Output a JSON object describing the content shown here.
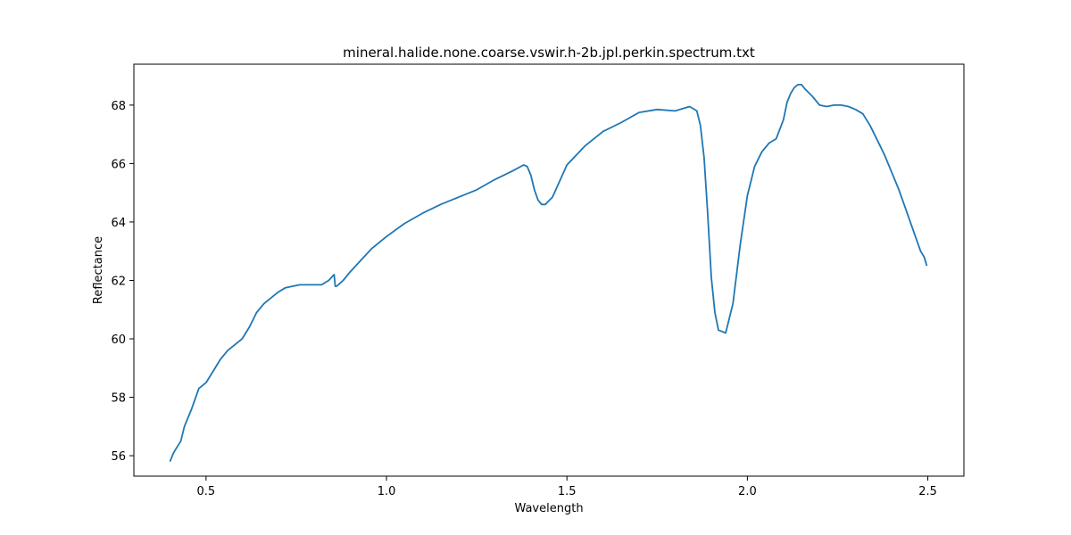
{
  "chart_data": {
    "type": "line",
    "title": "mineral.halide.none.coarse.vswir.h-2b.jpl.perkin.spectrum.txt",
    "xlabel": "Wavelength",
    "ylabel": "Reflectance",
    "xlim": [
      0.3,
      2.6
    ],
    "ylim": [
      55.3,
      69.4
    ],
    "xticks": [
      0.5,
      1.0,
      1.5,
      2.0,
      2.5
    ],
    "xtick_labels": [
      "0.5",
      "1.0",
      "1.5",
      "2.0",
      "2.5"
    ],
    "yticks": [
      56,
      58,
      60,
      62,
      64,
      66,
      68
    ],
    "ytick_labels": [
      "56",
      "58",
      "60",
      "62",
      "64",
      "66",
      "68"
    ],
    "grid": false,
    "line_color": "#1f77b4",
    "series": [
      {
        "x": [
          0.4,
          0.41,
          0.42,
          0.43,
          0.44,
          0.46,
          0.48,
          0.5,
          0.52,
          0.54,
          0.56,
          0.58,
          0.6,
          0.62,
          0.64,
          0.66,
          0.68,
          0.7,
          0.72,
          0.74,
          0.76,
          0.78,
          0.8,
          0.82,
          0.84,
          0.855,
          0.858,
          0.862,
          0.88,
          0.9,
          0.93,
          0.96,
          1.0,
          1.05,
          1.1,
          1.15,
          1.2,
          1.25,
          1.3,
          1.35,
          1.38,
          1.39,
          1.4,
          1.41,
          1.42,
          1.43,
          1.44,
          1.46,
          1.48,
          1.5,
          1.55,
          1.6,
          1.65,
          1.7,
          1.75,
          1.8,
          1.84,
          1.86,
          1.87,
          1.88,
          1.89,
          1.9,
          1.91,
          1.92,
          1.94,
          1.96,
          1.98,
          2.0,
          2.02,
          2.04,
          2.06,
          2.08,
          2.1,
          2.11,
          2.12,
          2.13,
          2.14,
          2.15,
          2.16,
          2.18,
          2.2,
          2.22,
          2.24,
          2.26,
          2.28,
          2.3,
          2.32,
          2.34,
          2.36,
          2.38,
          2.4,
          2.42,
          2.44,
          2.46,
          2.48,
          2.49,
          2.495,
          2.497
        ],
        "y": [
          55.8,
          56.1,
          56.3,
          56.5,
          57.0,
          57.6,
          58.3,
          58.5,
          58.9,
          59.3,
          59.6,
          59.8,
          60.0,
          60.4,
          60.9,
          61.2,
          61.4,
          61.6,
          61.75,
          61.8,
          61.85,
          61.85,
          61.85,
          61.85,
          62.0,
          62.2,
          61.8,
          61.8,
          62.0,
          62.3,
          62.7,
          63.1,
          63.5,
          63.95,
          64.3,
          64.6,
          64.85,
          65.1,
          65.45,
          65.75,
          65.95,
          65.9,
          65.6,
          65.1,
          64.75,
          64.6,
          64.6,
          64.85,
          65.4,
          65.95,
          66.6,
          67.1,
          67.4,
          67.75,
          67.85,
          67.8,
          67.95,
          67.8,
          67.3,
          66.2,
          64.3,
          62.1,
          60.9,
          60.3,
          60.2,
          61.2,
          63.2,
          64.9,
          65.9,
          66.4,
          66.7,
          66.85,
          67.5,
          68.1,
          68.4,
          68.6,
          68.7,
          68.7,
          68.55,
          68.3,
          68.0,
          67.95,
          68.0,
          68.0,
          67.95,
          67.85,
          67.7,
          67.3,
          66.8,
          66.3,
          65.7,
          65.1,
          64.4,
          63.7,
          63.0,
          62.8,
          62.6,
          62.5
        ]
      }
    ]
  }
}
